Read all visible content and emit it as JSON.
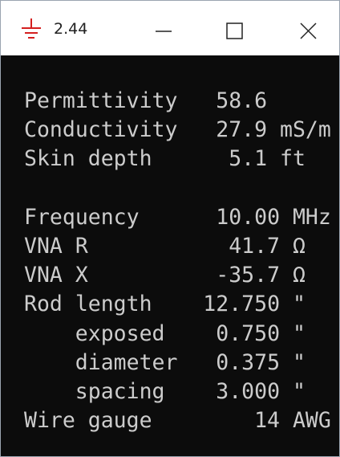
{
  "window": {
    "title": "2.44"
  },
  "rows": [
    {
      "label": "Permittivity",
      "value": "58.6"
    },
    {
      "label": "Conductivity",
      "value": "27.9",
      "unit": "mS/m"
    },
    {
      "label": "Skin depth",
      "value": "5.1",
      "unit": "ft"
    },
    {
      "label": "Frequency",
      "value": "10.00",
      "unit": "MHz"
    },
    {
      "label": "VNA R",
      "value": "41.7",
      "unit": "Ω"
    },
    {
      "label": "VNA X",
      "value": "-35.7",
      "unit": "Ω"
    },
    {
      "label": "Rod length",
      "value": "12.750",
      "unit": "\""
    },
    {
      "label": "exposed",
      "value": "0.750",
      "unit": "\""
    },
    {
      "label": "diameter",
      "value": "0.375",
      "unit": "\""
    },
    {
      "label": "spacing",
      "value": "3.000",
      "unit": "\""
    },
    {
      "label": "Wire gauge",
      "value": "14",
      "unit": "AWG"
    }
  ]
}
